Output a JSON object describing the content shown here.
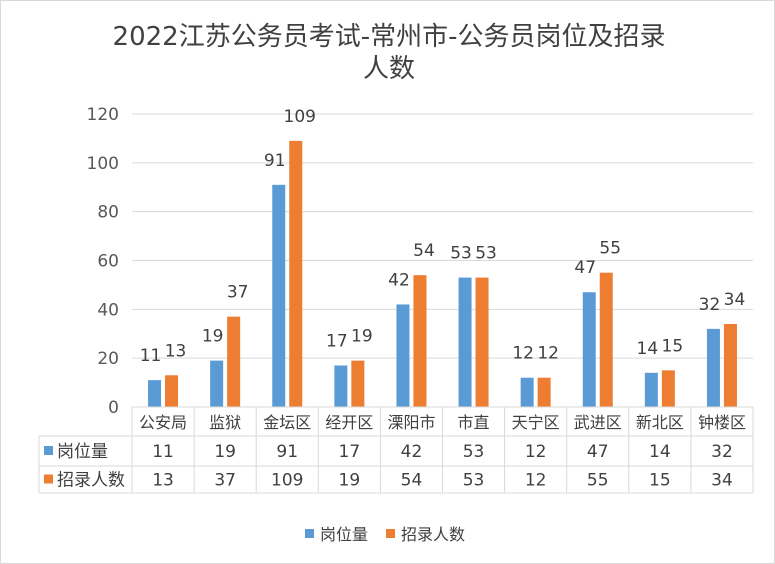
{
  "chart_data": {
    "type": "bar",
    "title_line1": "2022江苏公务员考试-常州市-公务员岗位及招录",
    "title_line2": "人数",
    "categories": [
      "公安局",
      "监狱",
      "金坛区",
      "经开区",
      "溧阳市",
      "市直",
      "天宁区",
      "武进区",
      "新北区",
      "钟楼区"
    ],
    "series": [
      {
        "name": "岗位量",
        "values": [
          11,
          19,
          91,
          17,
          42,
          53,
          12,
          47,
          14,
          32
        ],
        "color": "#5b9bd5"
      },
      {
        "name": "招录人数",
        "values": [
          13,
          37,
          109,
          19,
          54,
          53,
          12,
          55,
          15,
          34
        ],
        "color": "#ed7d31"
      }
    ],
    "ylim": [
      0,
      120
    ],
    "yticks": [
      0,
      20,
      40,
      60,
      80,
      100,
      120
    ],
    "grid": true,
    "data_table": true,
    "legend_position": "bottom"
  }
}
